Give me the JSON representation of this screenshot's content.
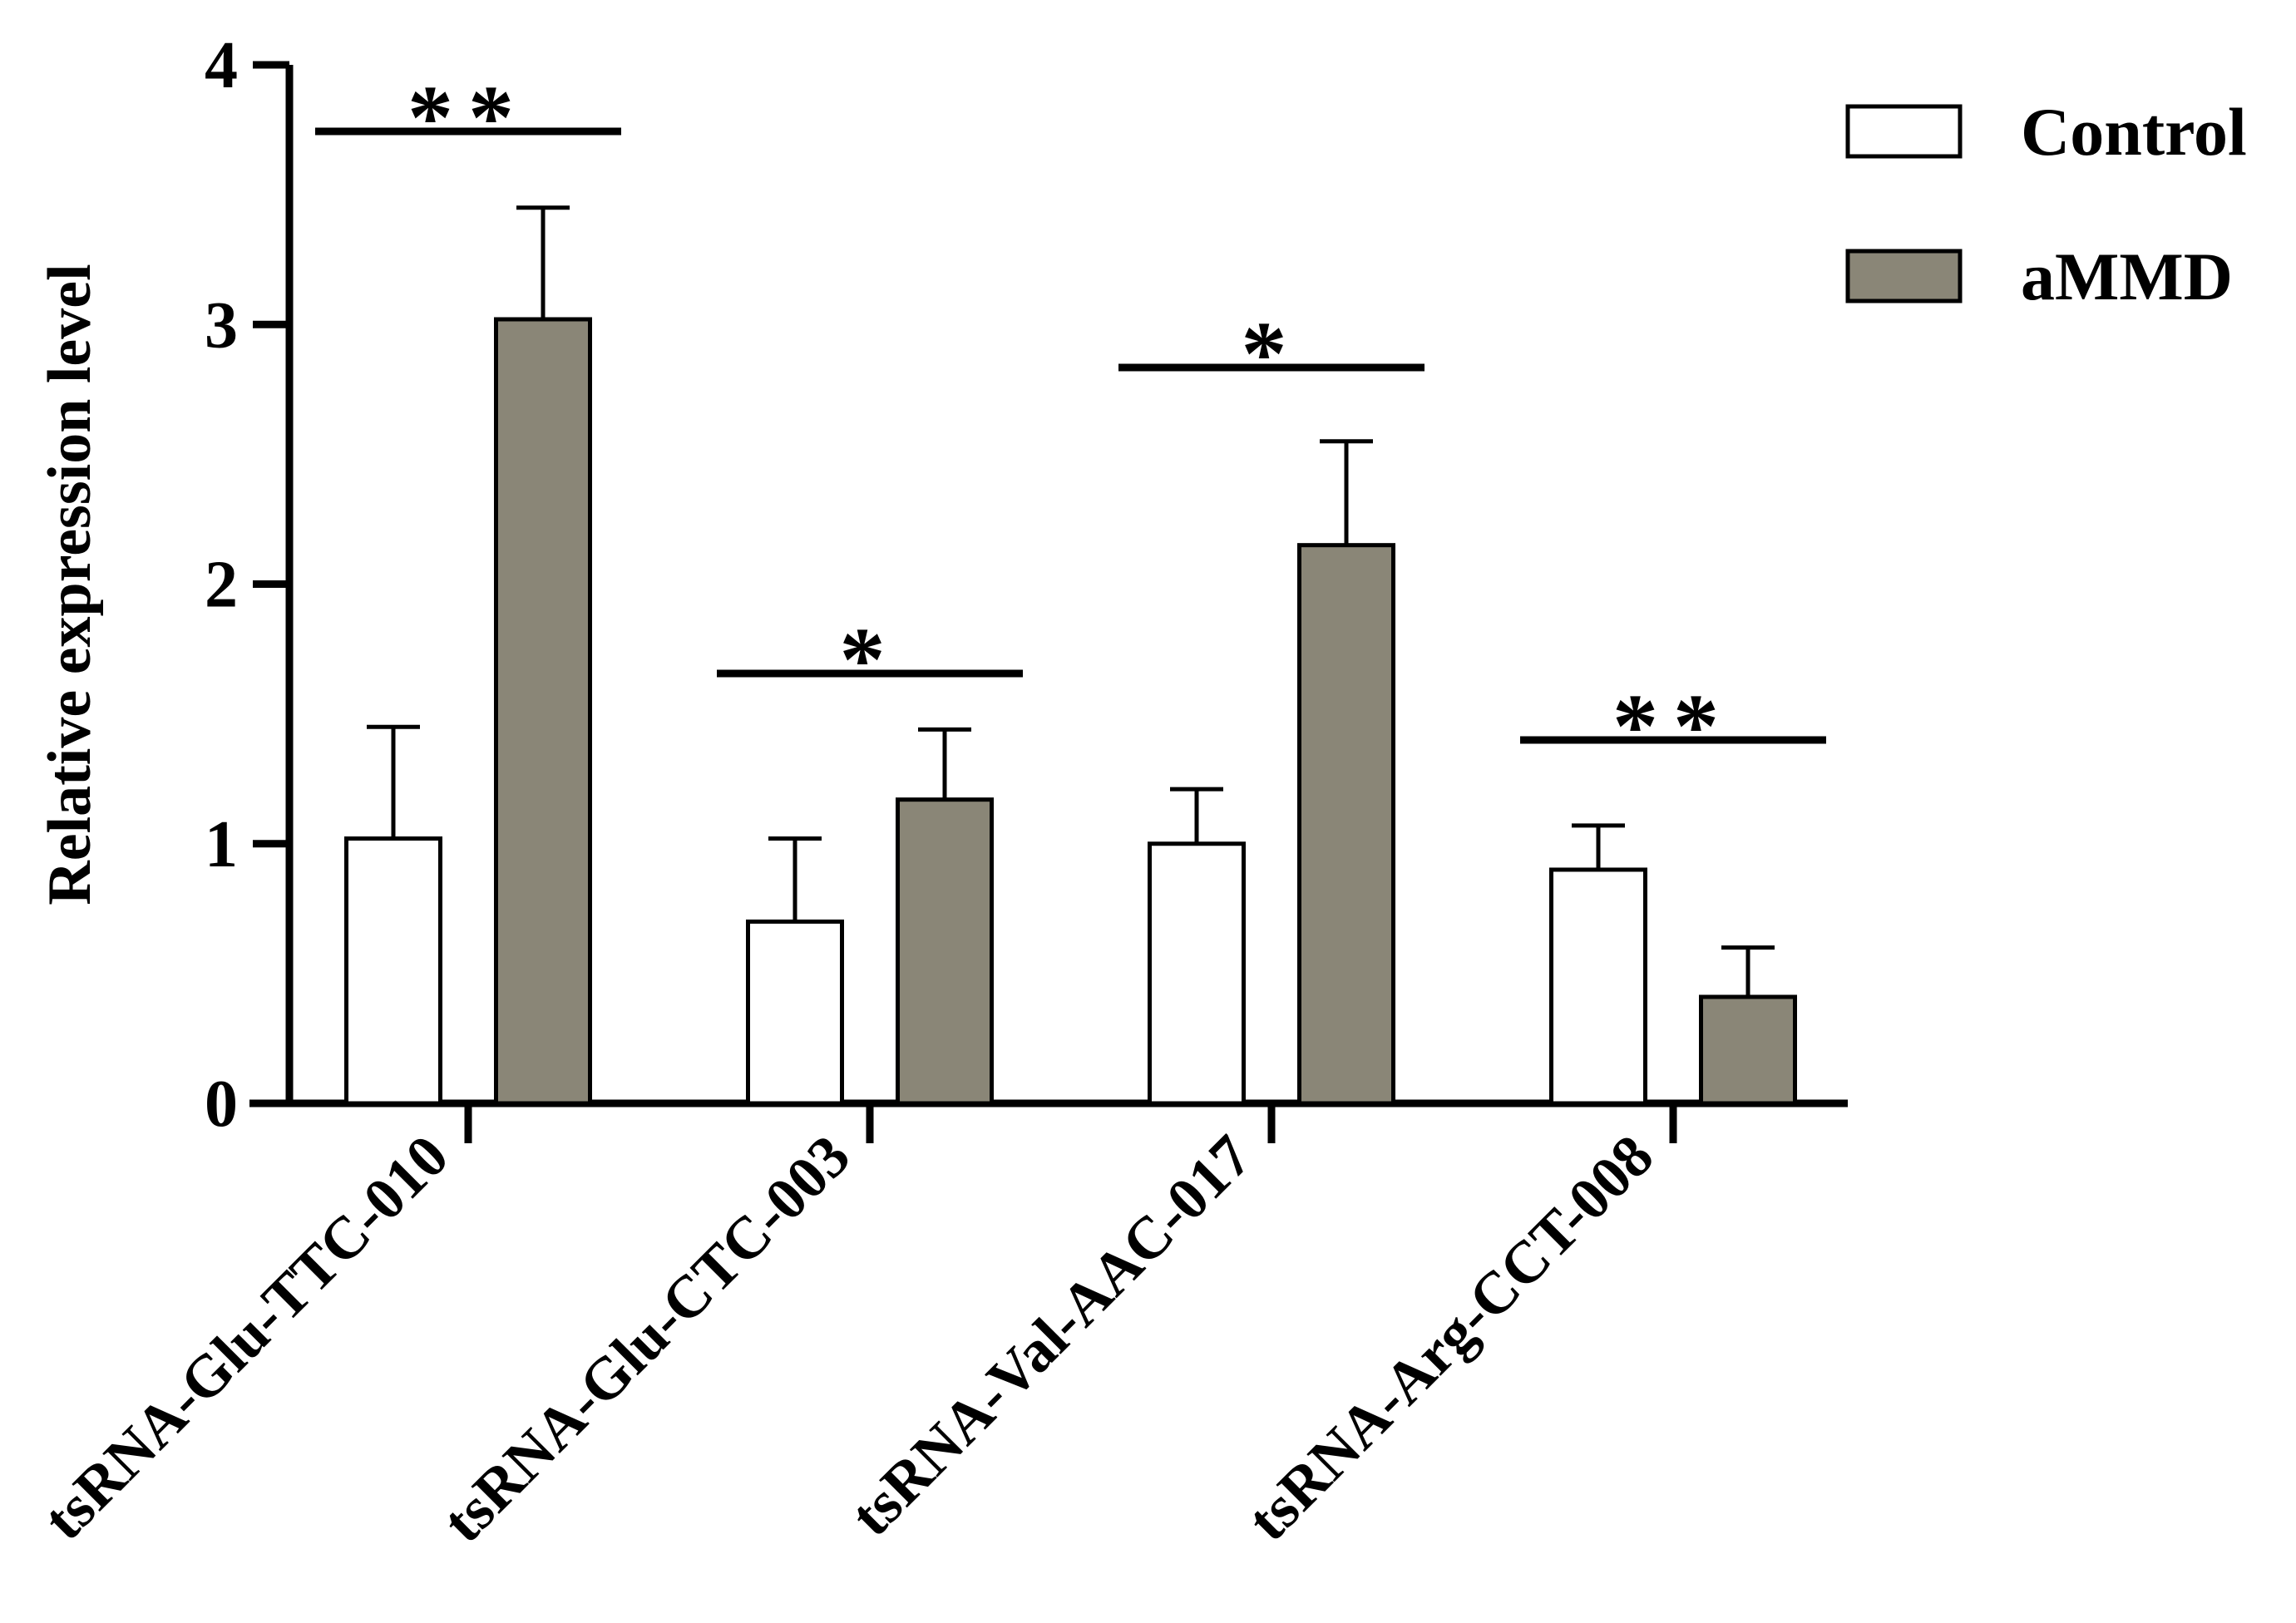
{
  "chart_data": {
    "type": "bar",
    "ylabel": "Relative expression level",
    "xlabel": "",
    "ylim": [
      0,
      4
    ],
    "yticks": [
      "0",
      "1",
      "2",
      "3",
      "4"
    ],
    "categories": [
      "tsRNA-Glu-TTC-010",
      "tsRNA-Glu-CTC-003",
      "tsRNA-Val-AAC-017",
      "tsRNA-Arg-CCT-008"
    ],
    "series": [
      {
        "name": "Control",
        "color": "#ffffff",
        "values": [
          1.02,
          0.7,
          1.0,
          0.9
        ],
        "errors": [
          0.43,
          0.32,
          0.21,
          0.17
        ]
      },
      {
        "name": "aMMD",
        "color": "#8a8677",
        "values": [
          3.02,
          1.17,
          2.15,
          0.41
        ],
        "errors": [
          0.43,
          0.27,
          0.4,
          0.19
        ]
      }
    ],
    "significance": [
      "**",
      "*",
      "*",
      "**"
    ],
    "legend_position": "top-right"
  }
}
